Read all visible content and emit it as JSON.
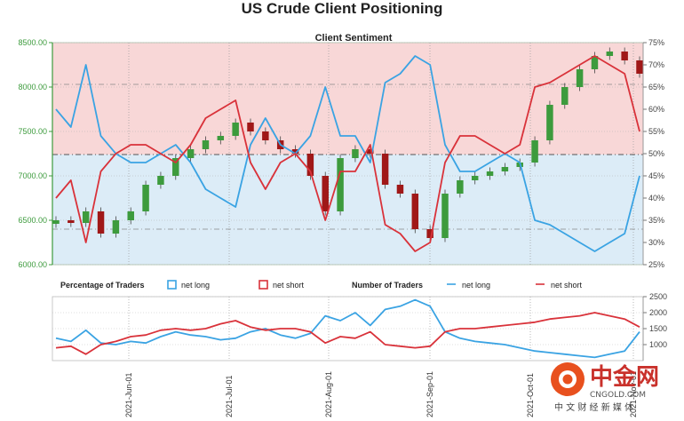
{
  "page_title": "US Crude Client Positioning",
  "chart_data": {
    "type": "line",
    "title": "Client Sentiment",
    "colors": {
      "net_long": "#3aa3e3",
      "net_short": "#d9323a",
      "candle_up": "#3d9b3d",
      "candle_down": "#a01818",
      "bg_short_zone": "#f8d7d7",
      "bg_long_zone": "#dcecf7",
      "price_axis": "#3d9b3d"
    },
    "price_axis": {
      "ylim": [
        6000,
        8500
      ],
      "ticks": [
        "8500.00",
        "8000.00",
        "7500.00",
        "7000.00",
        "6500.00",
        "6000.00"
      ]
    },
    "sentiment_axis": {
      "ylim": [
        25,
        75
      ],
      "unit": "%",
      "ticks": [
        "75%",
        "70%",
        "65%",
        "60%",
        "55%",
        "50%",
        "45%",
        "40%",
        "35%",
        "30%",
        "25%"
      ]
    },
    "count_axis": {
      "ylim": [
        500,
        2500
      ],
      "ticks": [
        "2500",
        "2000",
        "1500",
        "1000"
      ]
    },
    "x_labels": [
      "2021-Jun-01",
      "2021-Jul-01",
      "2021-Aug-01",
      "2021-Sep-01",
      "2021-Oct-01",
      "2021-Nov-01"
    ],
    "price": [
      6500,
      6470,
      6600,
      6350,
      6500,
      6600,
      6900,
      7000,
      7200,
      7300,
      7400,
      7450,
      7600,
      7500,
      7400,
      7300,
      7250,
      7000,
      6600,
      7200,
      7300,
      7250,
      6900,
      6800,
      6400,
      6300,
      6800,
      6950,
      7000,
      7050,
      7100,
      7150,
      7400,
      7800,
      8000,
      8200,
      8350,
      8400,
      8300,
      8150
    ],
    "candle_up_flags": [
      1,
      0,
      1,
      0,
      1,
      1,
      1,
      1,
      1,
      1,
      1,
      1,
      1,
      0,
      0,
      0,
      0,
      0,
      0,
      1,
      1,
      0,
      0,
      0,
      0,
      0,
      1,
      1,
      1,
      1,
      1,
      1,
      1,
      1,
      1,
      1,
      1,
      1,
      0,
      0
    ],
    "legend": {
      "percentage_title": "Percentage of Traders",
      "number_title": "Number of Traders",
      "net_long": "net long",
      "net_short": "net short"
    },
    "series": [
      {
        "name": "net long",
        "axis": "sentiment",
        "values": [
          60,
          56,
          70,
          54,
          50,
          48,
          48,
          50,
          52,
          48,
          42,
          40,
          38,
          52,
          58,
          52,
          50,
          54,
          65,
          54,
          54,
          48,
          66,
          68,
          72,
          70,
          52,
          46,
          46,
          48,
          50,
          48,
          35,
          34,
          32,
          30,
          28,
          30,
          32,
          45
        ]
      },
      {
        "name": "net short",
        "axis": "sentiment",
        "values": [
          40,
          44,
          30,
          46,
          50,
          52,
          52,
          50,
          48,
          52,
          58,
          60,
          62,
          48,
          42,
          48,
          50,
          46,
          35,
          46,
          46,
          52,
          34,
          32,
          28,
          30,
          48,
          54,
          54,
          52,
          50,
          52,
          65,
          66,
          68,
          70,
          72,
          70,
          68,
          55
        ]
      },
      {
        "name": "net long",
        "axis": "count",
        "values": [
          1200,
          1100,
          1450,
          1050,
          1000,
          1100,
          1050,
          1250,
          1400,
          1300,
          1250,
          1150,
          1200,
          1400,
          1500,
          1300,
          1200,
          1350,
          1900,
          1750,
          2000,
          1600,
          2100,
          2200,
          2400,
          2200,
          1400,
          1200,
          1100,
          1050,
          1000,
          900,
          800,
          750,
          700,
          650,
          600,
          700,
          800,
          1400
        ]
      },
      {
        "name": "net short",
        "axis": "count",
        "values": [
          900,
          950,
          700,
          1000,
          1100,
          1250,
          1300,
          1450,
          1500,
          1450,
          1500,
          1650,
          1750,
          1550,
          1450,
          1500,
          1500,
          1400,
          1050,
          1250,
          1200,
          1400,
          1000,
          950,
          900,
          950,
          1400,
          1500,
          1500,
          1550,
          1600,
          1650,
          1700,
          1800,
          1850,
          1900,
          2000,
          1900,
          1800,
          1550
        ]
      }
    ]
  },
  "watermark": {
    "brand": "中金网",
    "domain": "CNGOLD.COM",
    "tagline": "中 文 财 经 新 媒 体"
  }
}
